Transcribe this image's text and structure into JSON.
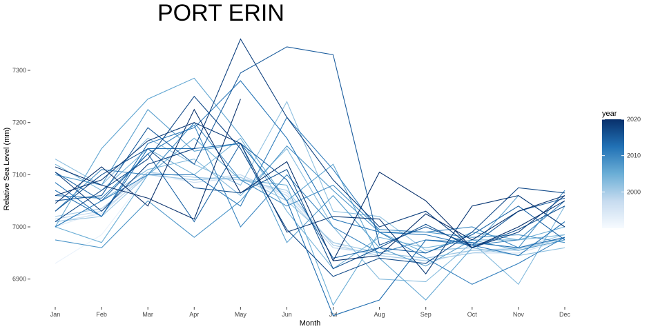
{
  "chart_data": {
    "type": "line",
    "title": "PORT ERIN",
    "xlabel": "Month",
    "ylabel": "Relative Sea Level (mm)",
    "categories": [
      "Jan",
      "Feb",
      "Mar",
      "Apr",
      "May",
      "Jun",
      "Jul",
      "Aug",
      "Sep",
      "Oct",
      "Nov",
      "Dec"
    ],
    "yticks": [
      6900,
      7000,
      7100,
      7200,
      7300
    ],
    "ylim": [
      6830,
      7370
    ],
    "grid": false,
    "legend": {
      "title": "year",
      "type": "colorbar",
      "placement": "right",
      "range": [
        1990,
        2020
      ],
      "ticks": [
        2000,
        2010,
        2020
      ],
      "colors": [
        "#f7fbff",
        "#c6dbef",
        "#6baed6",
        "#2171b5",
        "#08306b"
      ]
    },
    "series": [
      {
        "year": 1992,
        "values": [
          6930,
          6985,
          7100,
          7085,
          7095,
          7060,
          6960,
          6945,
          6935,
          6950,
          6955,
          6980
        ]
      },
      {
        "year": 1994,
        "values": [
          7000,
          7030,
          7100,
          7090,
          7100,
          7055,
          6970,
          6940,
          6930,
          6955,
          6960,
          6985
        ]
      },
      {
        "year": 1996,
        "values": [
          7010,
          7025,
          7105,
          7085,
          7095,
          7065,
          6965,
          6945,
          6935,
          6950,
          6950,
          6975
        ]
      },
      {
        "year": 1998,
        "values": [
          7015,
          7030,
          7100,
          7090,
          7100,
          7060,
          6960,
          6950,
          6940,
          6955,
          6955,
          6980
        ]
      },
      {
        "year": 2000,
        "values": [
          7020,
          7035,
          7105,
          7095,
          7090,
          7070,
          6965,
          6945,
          6935,
          6950,
          6960,
          6985
        ]
      },
      {
        "year": 2001,
        "values": [
          7010,
          7020,
          7100,
          7090,
          7095,
          7050,
          6970,
          6950,
          6940,
          6955,
          6958,
          6978
        ]
      },
      {
        "year": 2002,
        "values": [
          7130,
          7080,
          7170,
          7120,
          7080,
          7240,
          7030,
          7020,
          6955,
          6960,
          6945,
          6960
        ]
      },
      {
        "year": 2003,
        "values": [
          7000,
          7050,
          7110,
          7130,
          7060,
          7150,
          7000,
          6900,
          6895,
          6970,
          6890,
          7040
        ]
      },
      {
        "year": 2004,
        "values": [
          7120,
          7070,
          7150,
          7100,
          7170,
          7030,
          6920,
          6980,
          6960,
          6975,
          6975,
          6985
        ]
      },
      {
        "year": 2005,
        "values": [
          7000,
          6970,
          7100,
          7170,
          7090,
          7080,
          6850,
          6990,
          6950,
          6990,
          6975,
          7000
        ]
      },
      {
        "year": 2006,
        "values": [
          7000,
          7150,
          7245,
          7285,
          7175,
          7050,
          7120,
          6940,
          6860,
          6960,
          7060,
          7000
        ]
      },
      {
        "year": 2007,
        "values": [
          7100,
          7080,
          7225,
          7145,
          7160,
          6970,
          7060,
          6960,
          6925,
          6975,
          6955,
          6975
        ]
      },
      {
        "year": 2008,
        "values": [
          6975,
          6960,
          7050,
          6980,
          7050,
          7155,
          7070,
          6990,
          6990,
          6980,
          6985,
          6970
        ]
      },
      {
        "year": 2009,
        "values": [
          7030,
          7110,
          7100,
          7200,
          7090,
          7040,
          7080,
          6995,
          6990,
          7000,
          6960,
          7070
        ]
      },
      {
        "year": 2010,
        "values": [
          7060,
          7055,
          7140,
          7195,
          7000,
          7100,
          7000,
          6950,
          6975,
          6965,
          6975,
          7050
        ]
      },
      {
        "year": 2011,
        "values": [
          7000,
          7050,
          7100,
          7100,
          7040,
          7210,
          7110,
          6990,
          6940,
          6890,
          6930,
          6980
        ]
      },
      {
        "year": 2012,
        "values": [
          7085,
          7020,
          7160,
          7190,
          7280,
          7170,
          7015,
          6990,
          6985,
          6965,
          6945,
          7010
        ]
      },
      {
        "year": 2013,
        "values": [
          7070,
          7020,
          7150,
          7150,
          7160,
          7050,
          6830,
          6860,
          6975,
          6970,
          6960,
          6980
        ]
      },
      {
        "year": 2014,
        "values": [
          7105,
          7050,
          7140,
          7010,
          7160,
          7090,
          6940,
          6960,
          6950,
          6985,
          7040,
          6975
        ]
      },
      {
        "year": 2015,
        "values": [
          7050,
          7060,
          7190,
          7120,
          7295,
          7345,
          7330,
          6965,
          7000,
          6965,
          7030,
          7055
        ]
      },
      {
        "year": 2016,
        "values": [
          7030,
          7100,
          7150,
          7075,
          7065,
          7110,
          6920,
          6960,
          7005,
          6960,
          6995,
          7040
        ]
      },
      {
        "year": 2017,
        "values": [
          7010,
          7070,
          7130,
          7250,
          7150,
          6995,
          6905,
          6940,
          6930,
          6990,
          7075,
          7065
        ]
      },
      {
        "year": 2018,
        "values": [
          7105,
          7030,
          7120,
          7150,
          7360,
          7210,
          7090,
          7000,
          7030,
          6960,
          6990,
          7060
        ]
      },
      {
        "year": 2019,
        "values": [
          7060,
          7090,
          7165,
          7200,
          7160,
          6990,
          7020,
          7015,
          6910,
          7040,
          7060,
          7000
        ]
      },
      {
        "year": 2020,
        "values": [
          7115,
          7080,
          7055,
          7015,
          7245,
          null,
          6935,
          7105,
          7050,
          6960,
          7000,
          7050
        ]
      },
      {
        "year": 2021,
        "values": [
          7045,
          7115,
          7040,
          7225,
          7065,
          7125,
          6935,
          6945,
          7025,
          6975,
          7030,
          7060
        ]
      }
    ]
  }
}
